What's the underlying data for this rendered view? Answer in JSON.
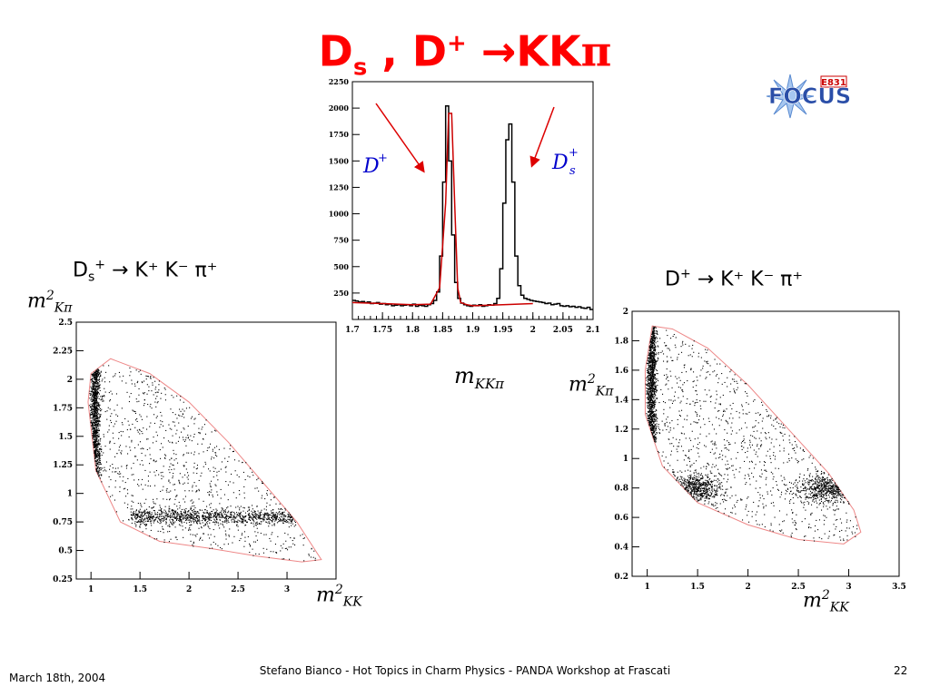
{
  "slide": {
    "title": {
      "part1": "D",
      "part1_sub": "s",
      "sep": " , ",
      "part2": "D",
      "part2_sup": "+",
      "arrow": " →",
      "part3": "KK",
      "part4": "π"
    },
    "logo": {
      "text": "FOCUS",
      "badge": "E831"
    },
    "decay_left": {
      "D": "D",
      "sub": "s",
      "sup": "+",
      "rest": "→ K⁺ K⁻ π⁺"
    },
    "decay_right": {
      "D": "D",
      "sup": "+",
      "rest": "→ K⁺ K⁻ π⁺"
    },
    "footer": {
      "date": "March 18th, 2004",
      "center": "Stefano Bianco - Hot Topics in Charm Physics - PANDA Workshop at Frascati",
      "page": "22"
    },
    "colors": {
      "title": "#ff0000",
      "annotation": "#0000cc",
      "arrow": "#dd0000",
      "fit": "#cc0000",
      "boundary": "#ee8888"
    }
  },
  "chart_data": [
    {
      "type": "line",
      "name": "mass-histogram",
      "xlabel": "m_{KKπ}",
      "ylabel": "",
      "xlim": [
        1.7,
        2.1
      ],
      "ylim": [
        0,
        2250
      ],
      "xticks": [
        "1.7",
        "1.75",
        "1.8",
        "1.85",
        "1.9",
        "1.95",
        "2",
        "2.05",
        "2.1"
      ],
      "yticks": [
        "250",
        "500",
        "750",
        "1000",
        "1250",
        "1500",
        "1750",
        "2000",
        "2250"
      ],
      "annotations": [
        {
          "text": "D",
          "sup": "+",
          "sub": ""
        },
        {
          "text": "D",
          "sup": "+",
          "sub": "s"
        }
      ],
      "series": [
        {
          "style": "histogram",
          "x": [
            1.7,
            1.705,
            1.71,
            1.715,
            1.72,
            1.725,
            1.73,
            1.735,
            1.74,
            1.745,
            1.75,
            1.755,
            1.76,
            1.765,
            1.77,
            1.775,
            1.78,
            1.785,
            1.79,
            1.795,
            1.8,
            1.805,
            1.81,
            1.815,
            1.82,
            1.825,
            1.83,
            1.835,
            1.84,
            1.845,
            1.85,
            1.855,
            1.86,
            1.865,
            1.87,
            1.875,
            1.88,
            1.885,
            1.89,
            1.895,
            1.9,
            1.905,
            1.91,
            1.915,
            1.92,
            1.925,
            1.93,
            1.935,
            1.94,
            1.945,
            1.95,
            1.955,
            1.96,
            1.965,
            1.97,
            1.975,
            1.98,
            1.985,
            1.99,
            1.995,
            2.0,
            2.005,
            2.01,
            2.015,
            2.02,
            2.025,
            2.03,
            2.035,
            2.04,
            2.045,
            2.05,
            2.055,
            2.06,
            2.065,
            2.07,
            2.075,
            2.08,
            2.085,
            2.09,
            2.095
          ],
          "values": [
            180,
            175,
            165,
            170,
            160,
            165,
            150,
            155,
            160,
            145,
            150,
            140,
            145,
            130,
            135,
            140,
            130,
            135,
            140,
            130,
            145,
            125,
            135,
            130,
            125,
            140,
            150,
            180,
            260,
            600,
            1300,
            2020,
            1500,
            800,
            350,
            200,
            155,
            140,
            130,
            125,
            135,
            130,
            140,
            125,
            130,
            140,
            135,
            150,
            200,
            480,
            1100,
            1700,
            1850,
            1300,
            600,
            320,
            230,
            200,
            190,
            180,
            175,
            170,
            165,
            160,
            150,
            155,
            140,
            145,
            150,
            130,
            125,
            130,
            120,
            125,
            115,
            120,
            110,
            105,
            115,
            95
          ]
        },
        {
          "style": "fit",
          "name": "",
          "x": [
            1.7,
            1.75,
            1.8,
            1.83,
            1.845,
            1.855,
            1.86,
            1.865,
            1.87,
            1.875,
            1.88,
            1.89,
            1.9,
            1.95,
            2.0
          ],
          "values": [
            160,
            150,
            140,
            145,
            300,
            1100,
            1950,
            1950,
            1100,
            300,
            160,
            140,
            130,
            140,
            150
          ]
        }
      ]
    },
    {
      "type": "scatter",
      "name": "dalitz-ds",
      "xlabel": "m²_{KK}",
      "ylabel": "m²_{Kπ}",
      "xlim": [
        0.85,
        3.5
      ],
      "ylim": [
        0.25,
        2.5
      ],
      "xticks": [
        "1",
        "1.5",
        "2",
        "2.5",
        "3"
      ],
      "yticks": [
        "0.25",
        "0.5",
        "0.75",
        "1",
        "1.25",
        "1.5",
        "1.75",
        "2",
        "2.25",
        "2.5"
      ],
      "features": [
        {
          "label": "phi band",
          "x": 1.04,
          "y_range": [
            1.0,
            2.1
          ]
        },
        {
          "label": "K*0 band",
          "y": 0.8,
          "x_range": [
            1.4,
            3.15
          ]
        }
      ],
      "boundary": {
        "x": [
          0.97,
          1.0,
          1.2,
          1.6,
          2.0,
          2.4,
          2.8,
          3.1,
          3.35,
          3.15,
          2.7,
          2.2,
          1.7,
          1.3,
          1.05,
          0.97
        ],
        "y": [
          1.8,
          2.05,
          2.18,
          2.05,
          1.8,
          1.45,
          1.05,
          0.75,
          0.42,
          0.4,
          0.45,
          0.52,
          0.58,
          0.75,
          1.2,
          1.8
        ]
      }
    },
    {
      "type": "scatter",
      "name": "dalitz-dplus",
      "xlabel": "m²_{KK}",
      "ylabel": "m²_{Kπ}",
      "xlim": [
        0.85,
        3.5
      ],
      "ylim": [
        0.2,
        2.0
      ],
      "xticks": [
        "1",
        "1.5",
        "2",
        "2.5",
        "3",
        "3.5"
      ],
      "yticks": [
        "0.2",
        "0.4",
        "0.6",
        "0.8",
        "1",
        "1.2",
        "1.4",
        "1.6",
        "1.8",
        "2"
      ],
      "features": [
        {
          "label": "phi band",
          "x": 1.04,
          "y_range": [
            1.1,
            1.9
          ]
        },
        {
          "label": "K*0 cluster",
          "x": 1.45,
          "y": 0.8
        },
        {
          "label": "K*0 cluster",
          "x": 2.8,
          "y": 0.8
        }
      ],
      "boundary": {
        "x": [
          0.98,
          1.05,
          1.25,
          1.6,
          2.0,
          2.4,
          2.8,
          3.05,
          3.12,
          2.95,
          2.5,
          2.0,
          1.5,
          1.15,
          0.98,
          0.98
        ],
        "y": [
          1.6,
          1.9,
          1.88,
          1.75,
          1.5,
          1.2,
          0.9,
          0.65,
          0.5,
          0.42,
          0.45,
          0.55,
          0.7,
          0.95,
          1.3,
          1.6
        ]
      }
    }
  ]
}
